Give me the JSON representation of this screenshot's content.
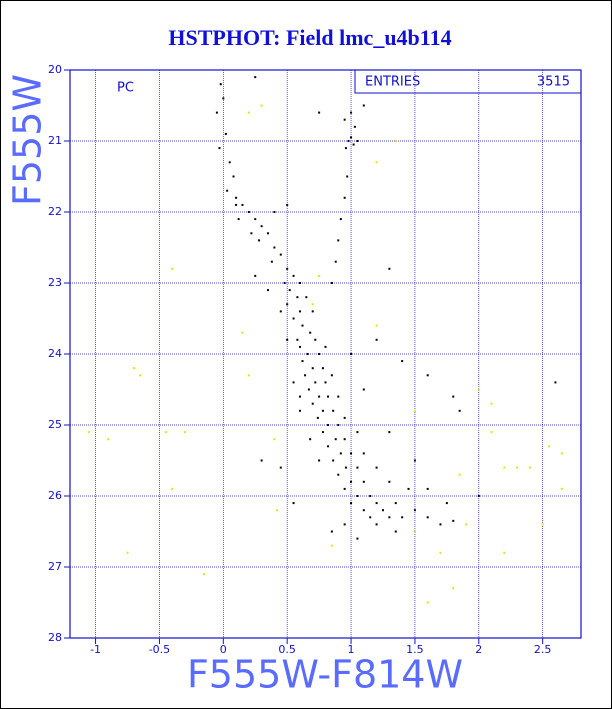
{
  "chart_data": {
    "type": "scatter",
    "title": "HSTPHOT: Field lmc_u4b114",
    "xlabel": "F555W-F814W",
    "ylabel": "F555W",
    "annotations": [
      "PC"
    ],
    "stats": {
      "label": "ENTRIES",
      "value": 3515
    },
    "xlim": [
      -1.2,
      2.8
    ],
    "ylim": [
      28,
      20
    ],
    "xticks": [
      -1,
      -0.5,
      0,
      0.5,
      1,
      1.5,
      2,
      2.5
    ],
    "yticks": [
      20,
      21,
      22,
      23,
      24,
      25,
      26,
      27,
      28
    ],
    "grid": true,
    "series": [
      {
        "color": "#000000",
        "x": [
          -0.02,
          0.0,
          -0.05,
          0.02,
          -0.03,
          0.05,
          0.08,
          0.03,
          0.1,
          0.15,
          0.2,
          0.12,
          0.25,
          0.3,
          0.22,
          0.35,
          0.28,
          0.4,
          0.45,
          0.38,
          0.5,
          0.55,
          0.48,
          0.6,
          0.52,
          0.58,
          0.65,
          0.5,
          0.6,
          0.7,
          0.55,
          0.62,
          0.68,
          0.58,
          0.72,
          0.6,
          0.66,
          0.75,
          0.62,
          0.7,
          0.78,
          0.64,
          0.72,
          0.8,
          0.67,
          0.75,
          0.82,
          0.7,
          0.78,
          0.86,
          0.74,
          0.82,
          0.9,
          0.78,
          0.88,
          0.95,
          0.82,
          0.92,
          1.0,
          0.86,
          0.96,
          1.05,
          0.9,
          1.0,
          1.1,
          0.95,
          1.05,
          1.15,
          1.2,
          1.0,
          1.1,
          1.25,
          1.3,
          1.15,
          1.4,
          1.35,
          1.5,
          1.6,
          1.8,
          1.2,
          0.95,
          1.45,
          1.3,
          1.2,
          1.1,
          0.75,
          0.68,
          0.6,
          0.55,
          0.5,
          0.45,
          0.9,
          0.95,
          1.05,
          0.85,
          0.8,
          0.85,
          0.88,
          0.9,
          0.92,
          0.95,
          0.97,
          0.98,
          1.0,
          1.02,
          1.05,
          0.96,
          1.03,
          1.0,
          0.95,
          1.1,
          0.75,
          0.5,
          0.4,
          0.25,
          0.1,
          1.3,
          1.2,
          1.4,
          1.6,
          1.8,
          1.85,
          2.6,
          2.0,
          1.75,
          0.3,
          0.45,
          0.55,
          0.6,
          0.35,
          0.25,
          1.0,
          1.1,
          1.3,
          1.5,
          1.6,
          1.7,
          1.35,
          1.05,
          0.85
        ],
        "values": [
          20.2,
          20.4,
          20.6,
          20.9,
          21.1,
          21.3,
          21.5,
          21.7,
          21.8,
          21.9,
          22.0,
          22.1,
          22.1,
          22.2,
          22.3,
          22.3,
          22.4,
          22.5,
          22.6,
          22.7,
          22.8,
          22.9,
          23.0,
          23.0,
          23.1,
          23.2,
          23.2,
          23.3,
          23.4,
          23.4,
          23.5,
          23.6,
          23.7,
          23.8,
          23.8,
          23.9,
          24.0,
          24.0,
          24.1,
          24.2,
          24.2,
          24.3,
          24.4,
          24.4,
          24.5,
          24.6,
          24.6,
          24.7,
          24.8,
          24.8,
          24.9,
          25.0,
          25.0,
          25.1,
          25.2,
          25.2,
          25.3,
          25.4,
          25.4,
          25.5,
          25.6,
          25.6,
          25.7,
          25.8,
          25.8,
          25.9,
          26.0,
          26.0,
          26.1,
          26.1,
          26.2,
          26.2,
          26.3,
          26.3,
          26.3,
          26.1,
          26.2,
          26.3,
          26.35,
          26.4,
          26.4,
          25.9,
          25.8,
          25.6,
          25.4,
          25.5,
          25.2,
          24.8,
          24.4,
          23.8,
          23.4,
          24.6,
          24.9,
          25.1,
          24.3,
          23.9,
          23.0,
          22.7,
          22.4,
          22.1,
          21.8,
          21.5,
          21.0,
          20.95,
          21.05,
          21.0,
          21.1,
          20.8,
          20.6,
          20.7,
          20.5,
          20.6,
          21.9,
          22.0,
          20.1,
          21.9,
          22.8,
          23.8,
          24.1,
          24.3,
          24.6,
          24.8,
          24.4,
          26.0,
          26.1,
          25.5,
          25.6,
          26.1,
          24.6,
          23.1,
          22.9,
          24.0,
          24.5,
          25.1,
          25.5,
          25.9,
          26.4,
          26.5,
          26.6,
          26.5
        ]
      },
      {
        "color": "#f0e000",
        "x": [
          0.2,
          0.3,
          -0.4,
          -0.3,
          -0.45,
          -0.4,
          -0.7,
          -0.65,
          -0.9,
          -1.05,
          -0.75,
          -0.15,
          0.15,
          0.2,
          0.4,
          0.42,
          0.85,
          1.5,
          1.7,
          1.8,
          1.6,
          1.9,
          2.1,
          2.2,
          2.3,
          2.4,
          2.5,
          2.65,
          2.65,
          2.55,
          2.1,
          2.0,
          1.2,
          1.35,
          1.2,
          2.2,
          0.7,
          0.75,
          1.5,
          1.85
        ],
        "values": [
          20.6,
          20.5,
          22.8,
          25.1,
          25.1,
          25.9,
          24.2,
          24.3,
          25.2,
          25.1,
          26.8,
          27.1,
          23.7,
          24.3,
          25.2,
          26.2,
          26.7,
          26.5,
          26.8,
          27.3,
          27.5,
          26.4,
          25.1,
          25.6,
          25.6,
          25.6,
          26.4,
          25.4,
          25.9,
          25.3,
          24.7,
          24.5,
          23.6,
          21.0,
          21.3,
          26.8,
          23.3,
          22.9,
          24.8,
          25.7
        ]
      }
    ]
  }
}
